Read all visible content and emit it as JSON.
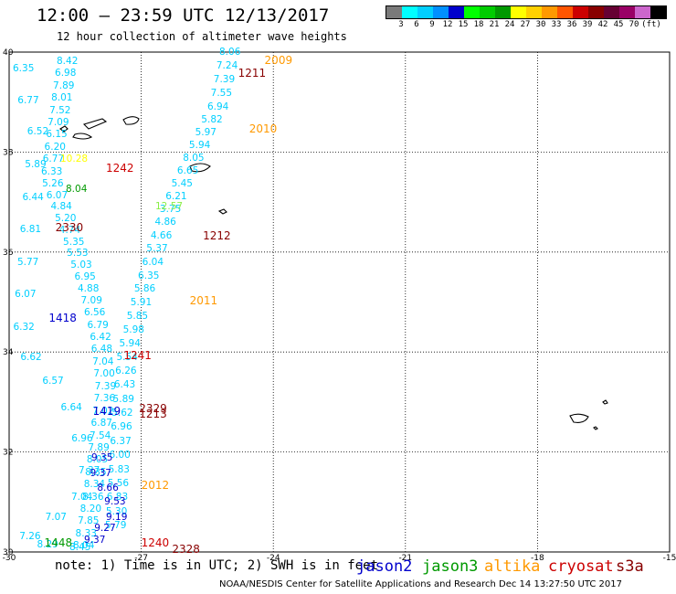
{
  "title": "12:00 – 23:59 UTC 12/13/2017",
  "subtitle": "12 hour collection of altimeter wave heights",
  "colorbar": {
    "colors": [
      "#7a7a7a",
      "#00ffff",
      "#00cfff",
      "#0090ff",
      "#0000cc",
      "#00ff00",
      "#00cc00",
      "#009900",
      "#ffff00",
      "#ffd000",
      "#ff9900",
      "#ff5500",
      "#cc0000",
      "#880000",
      "#660033",
      "#990066",
      "#cc66cc",
      "#000000"
    ],
    "labels": [
      "3",
      "6",
      "9",
      "12",
      "15",
      "18",
      "21",
      "24",
      "27",
      "30",
      "33",
      "36",
      "39",
      "42",
      "45",
      "70",
      "(ft)"
    ]
  },
  "axes": {
    "y_labels": [
      "40",
      "38",
      "36",
      "34",
      "32",
      "30"
    ],
    "x_labels": [
      "-30",
      "-27",
      "-24",
      "-21",
      "-18",
      "-15"
    ]
  },
  "note": "note:  1) Time is in UTC;  2) SWH is in feet",
  "satellites": [
    {
      "name": "jason2",
      "color": "#0000cc"
    },
    {
      "name": "jason3",
      "color": "#009900"
    },
    {
      "name": "altika",
      "color": "#ff9900"
    },
    {
      "name": "cryosat",
      "color": "#cc0000"
    },
    {
      "name": "s3a",
      "color": "#880000"
    }
  ],
  "credit": "NOAA/NESDIS Center for Satellite Applications and Research    Dec 14 13:27:50 UTC 2017",
  "time_labels": [
    {
      "text": "2009",
      "color": "#ff9900",
      "lon": -24.2,
      "lat": 39.85
    },
    {
      "text": "1211",
      "color": "#880000",
      "lon": -24.8,
      "lat": 39.6
    },
    {
      "text": "2010",
      "color": "#ff9900",
      "lon": -24.55,
      "lat": 38.48
    },
    {
      "text": "1242",
      "color": "#cc0000",
      "lon": -27.8,
      "lat": 37.7
    },
    {
      "text": "2330",
      "color": "#880000",
      "lon": -28.95,
      "lat": 36.5
    },
    {
      "text": "1212",
      "color": "#880000",
      "lon": -25.6,
      "lat": 36.35
    },
    {
      "text": "2011",
      "color": "#ff9900",
      "lon": -25.9,
      "lat": 35.05
    },
    {
      "text": "1418",
      "color": "#0000cc",
      "lon": -29.1,
      "lat": 34.7
    },
    {
      "text": "1241",
      "color": "#cc0000",
      "lon": -27.4,
      "lat": 33.95
    },
    {
      "text": "2329",
      "color": "#880000",
      "lon": -27.05,
      "lat": 32.88
    },
    {
      "text": "1213",
      "color": "#880000",
      "lon": -27.05,
      "lat": 32.77
    },
    {
      "text": "1419",
      "color": "#0000cc",
      "lon": -28.1,
      "lat": 32.84
    },
    {
      "text": "2012",
      "color": "#ff9900",
      "lon": -27.0,
      "lat": 31.35
    },
    {
      "text": "1448",
      "color": "#009900",
      "lon": -29.2,
      "lat": 30.2
    },
    {
      "text": "1240",
      "color": "#cc0000",
      "lon": -27.0,
      "lat": 30.2
    },
    {
      "text": "2328",
      "color": "#880000",
      "lon": -26.3,
      "lat": 30.07
    }
  ],
  "observations": [
    {
      "track": "A",
      "color": "#00cfff",
      "values": [
        "8.06",
        "7.24",
        "7.39",
        "7.55",
        "6.94",
        "5.82",
        "5.97",
        "5.94",
        "8.05",
        "6.65",
        "5.45",
        "6.21",
        "3.75",
        "4.86",
        "4.66",
        "5.37",
        "6.04",
        "6.35",
        "5.86",
        "5.91",
        "5.85",
        "5.98",
        "5.94",
        "5.54",
        "6.26",
        "6.43",
        "5.89",
        "5.62",
        "6.96",
        "6.37",
        "6.00",
        "5.83",
        "5.56",
        "6.83",
        "5.30",
        "5.79"
      ]
    },
    {
      "track": "B",
      "color": "#00cfff",
      "values": [
        "8.42",
        "6.98",
        "7.89",
        "8.01",
        "7.52",
        "7.09",
        "6.15",
        "6.20",
        "6.77",
        "6.33",
        "5.26",
        "6.07",
        "4.84",
        "5.20",
        "4.74",
        "5.35",
        "5.53",
        "5.03",
        "6.95",
        "4.88",
        "7.09",
        "6.56",
        "6.79",
        "6.42",
        "6.48",
        "7.04",
        "7.00",
        "7.39",
        "7.36",
        "7.02",
        "6.87",
        "7.54",
        "7.89",
        "8.05",
        "8.35",
        "8.34",
        "8.36",
        "8.20",
        "7.85",
        "8.33",
        "8.04"
      ]
    },
    {
      "track": "C",
      "color": "#00cfff",
      "values": [
        "6.35",
        "6.77",
        "6.52",
        "5.89",
        "6.44",
        "6.81",
        "5.77",
        "6.07",
        "6.32",
        "6.62",
        "6.57",
        "6.64",
        "6.96",
        "7.37",
        "7.04",
        "7.07",
        "7.26",
        "8.29",
        "8.45"
      ]
    },
    {
      "track": "D",
      "color": "#0000cc",
      "values": [
        "9.35",
        "9.37",
        "8.66",
        "9.53",
        "9.19",
        "9.27",
        "9.37"
      ]
    },
    {
      "track": "E",
      "color": "#009900",
      "values": [
        "8.04"
      ]
    },
    {
      "track": "F",
      "color": "#88ee44",
      "values": [
        "12.57"
      ]
    },
    {
      "track": "G",
      "color": "#ffff00",
      "values": [
        "10.28"
      ]
    }
  ]
}
